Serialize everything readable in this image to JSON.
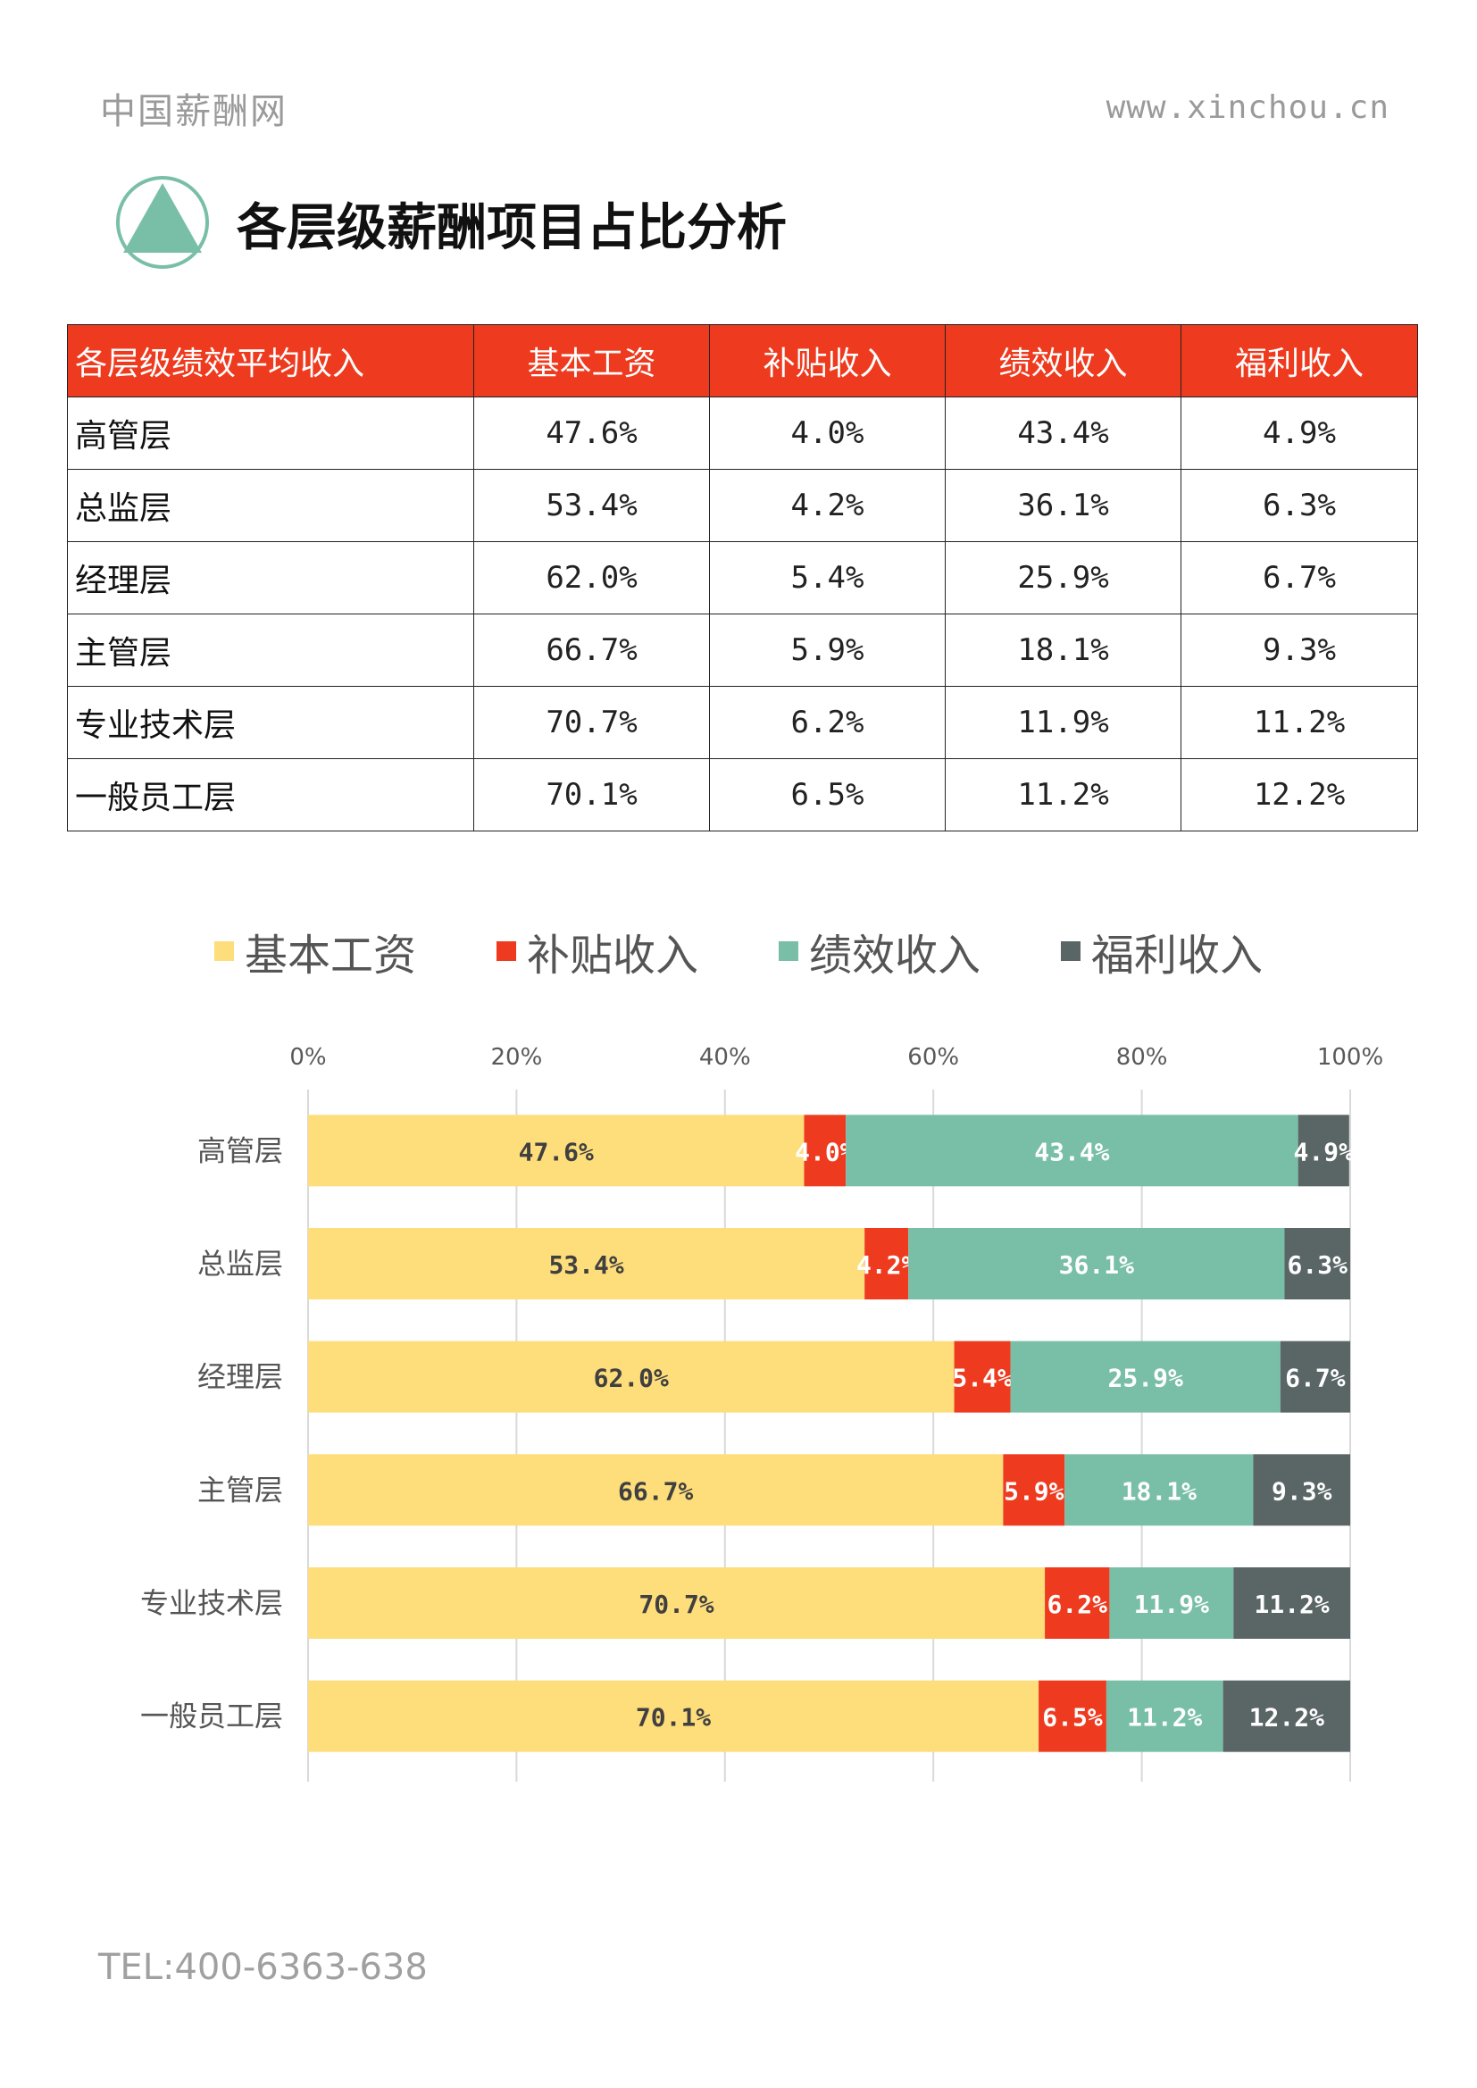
{
  "header": {
    "brand": "中国薪酬网",
    "url": "www.xinchou.cn"
  },
  "title": "各层级薪酬项目占比分析",
  "table": {
    "headers": [
      "各层级绩效平均收入",
      "基本工资",
      "补贴收入",
      "绩效收入",
      "福利收入"
    ],
    "rows": [
      [
        "高管层",
        "47.6%",
        "4.0%",
        "43.4%",
        "4.9%"
      ],
      [
        "总监层",
        "53.4%",
        "4.2%",
        "36.1%",
        "6.3%"
      ],
      [
        "经理层",
        "62.0%",
        "5.4%",
        "25.9%",
        "6.7%"
      ],
      [
        "主管层",
        "66.7%",
        "5.9%",
        "18.1%",
        "9.3%"
      ],
      [
        "专业技术层",
        "70.7%",
        "6.2%",
        "11.9%",
        "11.2%"
      ],
      [
        "一般员工层",
        "70.1%",
        "6.5%",
        "11.2%",
        "12.2%"
      ]
    ]
  },
  "chart_data": {
    "type": "bar",
    "orientation": "horizontal",
    "stacked": true,
    "categories": [
      "高管层",
      "总监层",
      "经理层",
      "主管层",
      "专业技术层",
      "一般员工层"
    ],
    "series": [
      {
        "name": "基本工资",
        "color": "#FEDD7B",
        "values": [
          47.6,
          53.4,
          62.0,
          66.7,
          70.7,
          70.1
        ]
      },
      {
        "name": "补贴收入",
        "color": "#EE3B1F",
        "values": [
          4.0,
          4.2,
          5.4,
          5.9,
          6.2,
          6.5
        ]
      },
      {
        "name": "绩效收入",
        "color": "#79BFA8",
        "values": [
          43.4,
          36.1,
          25.9,
          18.1,
          11.9,
          11.2
        ]
      },
      {
        "name": "福利收入",
        "color": "#5A6566",
        "values": [
          4.9,
          6.3,
          6.7,
          9.3,
          11.2,
          12.2
        ]
      }
    ],
    "xlim": [
      0,
      100
    ],
    "xticks": [
      "0%",
      "20%",
      "40%",
      "60%",
      "80%",
      "100%"
    ],
    "legend": "top",
    "grid": true,
    "data_labels": true
  },
  "footer": {
    "tel": "TEL:400-6363-638"
  }
}
